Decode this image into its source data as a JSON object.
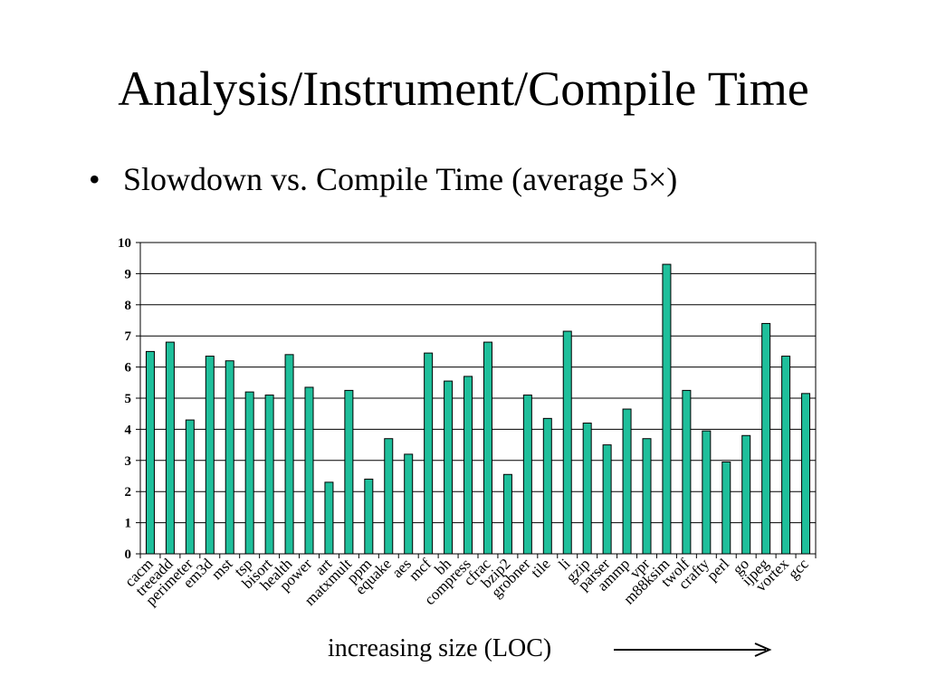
{
  "slide": {
    "title": "Analysis/Instrument/Compile Time",
    "bullet_marker": "•",
    "bullet_text": "Slowdown vs. Compile Time (average 5×)",
    "footer_label": "increasing size (LOC)"
  },
  "chart_data": {
    "type": "bar",
    "title": "",
    "xlabel": "increasing size (LOC)",
    "ylabel": "",
    "ylim": [
      0,
      10
    ],
    "yticks": [
      0,
      1,
      2,
      3,
      4,
      5,
      6,
      7,
      8,
      9,
      10
    ],
    "grid": true,
    "legend": "none",
    "bar_color": "#1fbf9b",
    "bar_stroke": "#000000",
    "categories": [
      "cacm",
      "treeadd",
      "perimeter",
      "em3d",
      "mst",
      "tsp",
      "bisort",
      "health",
      "power",
      "art",
      "matxmult",
      "ppm",
      "equake",
      "aes",
      "mcf",
      "bh",
      "compress",
      "cfrac",
      "bzip2",
      "grobner",
      "tile",
      "li",
      "gzip",
      "parser",
      "ammp",
      "vpr",
      "m88ksim",
      "twolf",
      "crafty",
      "perl",
      "go",
      "ijpeg",
      "vortex",
      "gcc"
    ],
    "values": [
      6.5,
      6.8,
      4.3,
      6.35,
      6.2,
      5.2,
      5.1,
      6.4,
      5.35,
      2.3,
      5.25,
      2.4,
      3.7,
      3.2,
      6.45,
      5.55,
      5.7,
      6.8,
      2.55,
      5.1,
      4.35,
      7.15,
      4.2,
      3.5,
      4.65,
      3.7,
      9.3,
      5.25,
      3.95,
      2.95,
      3.8,
      7.4,
      6.35,
      5.15
    ]
  }
}
